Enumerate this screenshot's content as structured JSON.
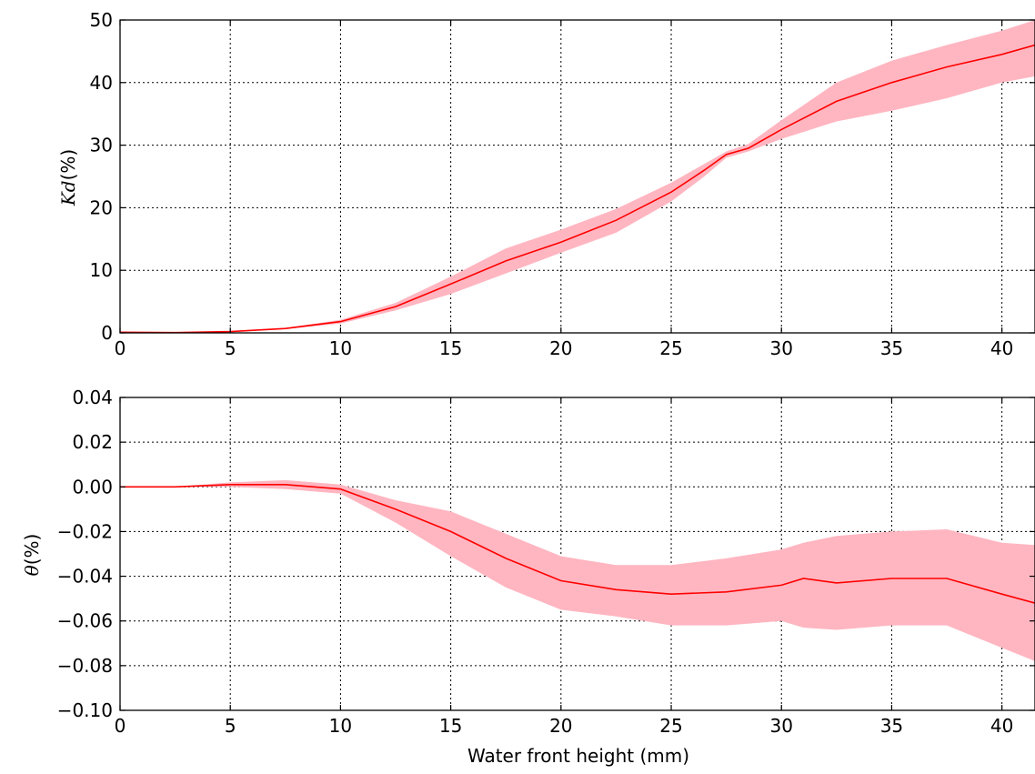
{
  "chart_data": [
    {
      "type": "line",
      "ylabel_math": "Kd",
      "ylabel_unit": "(%)",
      "xlim": [
        0,
        41.5
      ],
      "ylim": [
        0,
        50
      ],
      "xticks": [
        0,
        5,
        10,
        15,
        20,
        25,
        30,
        35,
        40
      ],
      "yticks": [
        0,
        10,
        20,
        30,
        40,
        50
      ],
      "xtick_labels": [
        "0",
        "5",
        "10",
        "15",
        "20",
        "25",
        "30",
        "35",
        "40"
      ],
      "ytick_labels": [
        "0",
        "10",
        "20",
        "30",
        "40",
        "50"
      ],
      "grid": true,
      "colors": {
        "line": "#ff0000",
        "band": "#ffb6c1"
      },
      "series": [
        {
          "x": [
            0,
            2.5,
            5,
            7.5,
            10,
            12.5,
            15,
            17.5,
            20,
            22.5,
            25,
            26.5,
            27.5,
            28.5,
            30,
            32.5,
            35,
            37.5,
            40,
            41.5
          ],
          "mean": [
            0.1,
            0.05,
            0.2,
            0.7,
            1.8,
            4.2,
            7.8,
            11.5,
            14.5,
            18,
            22.5,
            26,
            28.5,
            29.5,
            32.5,
            37,
            40,
            42.5,
            44.5,
            46
          ],
          "lower": [
            0.05,
            0.02,
            0.15,
            0.6,
            1.5,
            3.6,
            6.2,
            9.5,
            12.8,
            16,
            21,
            25,
            28,
            29,
            31,
            33.8,
            35.5,
            37.5,
            40,
            41
          ],
          "upper": [
            0.15,
            0.1,
            0.3,
            0.8,
            2.1,
            4.8,
            9,
            13.5,
            16.5,
            19.8,
            24,
            27,
            29,
            30.2,
            34,
            40,
            43.5,
            46,
            48.3,
            50
          ]
        }
      ]
    },
    {
      "type": "line",
      "ylabel_math": "θ",
      "ylabel_unit": "(%)",
      "xlabel": "Water front height (mm)",
      "xlim": [
        0,
        41.5
      ],
      "ylim": [
        -0.1,
        0.04
      ],
      "xticks": [
        0,
        5,
        10,
        15,
        20,
        25,
        30,
        35,
        40
      ],
      "yticks": [
        -0.1,
        -0.08,
        -0.06,
        -0.04,
        -0.02,
        0,
        0.02,
        0.04
      ],
      "xtick_labels": [
        "0",
        "5",
        "10",
        "15",
        "20",
        "25",
        "30",
        "35",
        "40"
      ],
      "ytick_labels": [
        "−0.10",
        "−0.08",
        "−0.06",
        "−0.04",
        "−0.02",
        "0.00",
        "0.02",
        "0.04"
      ],
      "grid": true,
      "colors": {
        "line": "#ff0000",
        "band": "#ffb6c1"
      },
      "series": [
        {
          "x": [
            0,
            2.5,
            5,
            7.5,
            10,
            12.5,
            15,
            17.5,
            20,
            22.5,
            25,
            27.5,
            30,
            31,
            32.5,
            35,
            37.5,
            40,
            41.5
          ],
          "mean": [
            0,
            0,
            0.001,
            0.001,
            -0.001,
            -0.01,
            -0.02,
            -0.032,
            -0.042,
            -0.046,
            -0.048,
            -0.047,
            -0.044,
            -0.041,
            -0.043,
            -0.041,
            -0.041,
            -0.048,
            -0.052
          ],
          "lower": [
            0,
            0,
            0,
            -0.001,
            -0.003,
            -0.016,
            -0.031,
            -0.045,
            -0.055,
            -0.058,
            -0.062,
            -0.062,
            -0.06,
            -0.063,
            -0.064,
            -0.062,
            -0.062,
            -0.072,
            -0.078
          ],
          "upper": [
            0,
            0,
            0.002,
            0.003,
            0.001,
            -0.006,
            -0.011,
            -0.021,
            -0.031,
            -0.035,
            -0.035,
            -0.032,
            -0.028,
            -0.025,
            -0.022,
            -0.02,
            -0.019,
            -0.025,
            -0.026
          ]
        }
      ]
    }
  ]
}
